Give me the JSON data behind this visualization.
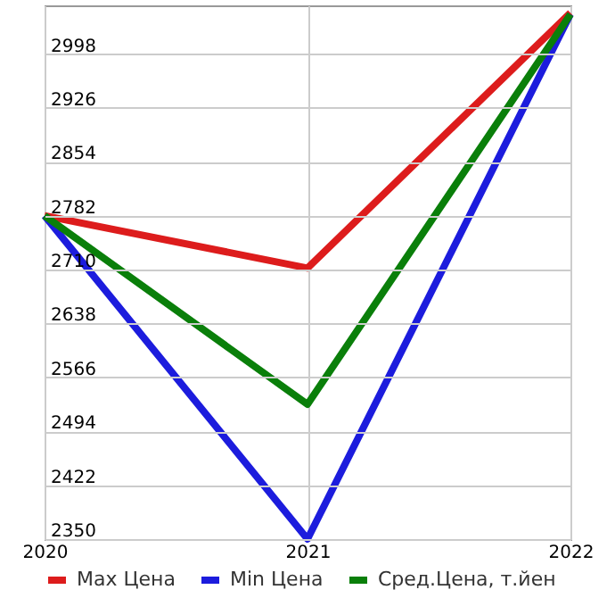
{
  "chart_data": {
    "type": "line",
    "categories": [
      "2020",
      "2021",
      "2022"
    ],
    "series": [
      {
        "name": "Max Цена",
        "color": "#dd1c1c",
        "values": [
          2782,
          2712,
          3053
        ]
      },
      {
        "name": "Min Цена",
        "color": "#1c1cdd",
        "values": [
          2782,
          2350,
          3051
        ]
      },
      {
        "name": "Сред.Цена, т.йен",
        "color": "#0a7f0a",
        "values": [
          2782,
          2530,
          3051
        ]
      }
    ],
    "ylim": [
      2350,
      3063
    ],
    "yticks": [
      2350,
      2422,
      2494,
      2566,
      2638,
      2710,
      2782,
      2854,
      2926,
      2998
    ],
    "grid": true,
    "legend": "bottom",
    "marker": "none",
    "line_style": "solid"
  }
}
